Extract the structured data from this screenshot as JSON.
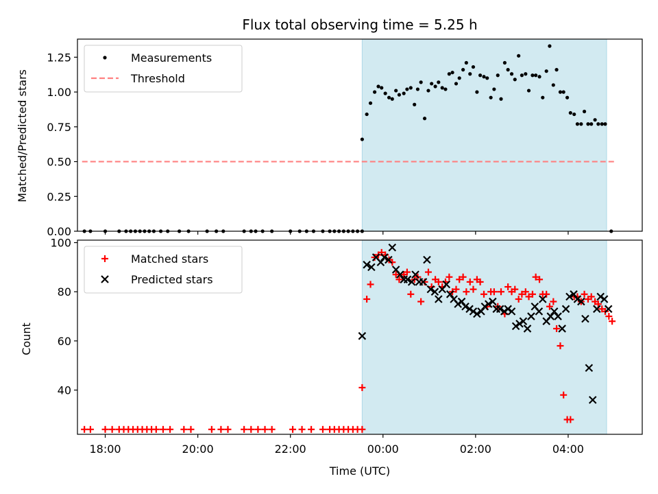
{
  "figure_title": "Flux total observing time = 5.25 h",
  "chart_data": [
    {
      "type": "scatter",
      "title": "Flux total observing time = 5.25 h",
      "xlabel": "",
      "ylabel": "Matched/Predicted stars",
      "xlim": [
        -6.6,
        5.6
      ],
      "ylim": [
        0,
        1.38
      ],
      "yticks": [
        0.0,
        0.25,
        0.5,
        0.75,
        1.0,
        1.25
      ],
      "ytick_labels": [
        "0.00",
        "0.25",
        "0.50",
        "0.75",
        "1.00",
        "1.25"
      ],
      "grid": false,
      "legend_placement": "top-left",
      "observing_window": {
        "start": -0.45,
        "end": 4.83,
        "color": "#add8e6"
      },
      "series": [
        {
          "name": "Measurements",
          "marker": "dot",
          "color": "#000000",
          "x": [
            -6.45,
            -6.32,
            -6.0,
            -5.7,
            -5.55,
            -5.45,
            -5.35,
            -5.25,
            -5.15,
            -5.05,
            -4.95,
            -4.8,
            -4.65,
            -4.4,
            -4.2,
            -3.8,
            -3.6,
            -3.45,
            -3.0,
            -2.85,
            -2.75,
            -2.6,
            -2.4,
            -2.0,
            -1.8,
            -1.65,
            -1.5,
            -1.3,
            -1.15,
            -1.05,
            -0.95,
            -0.85,
            -0.75,
            -0.65,
            -0.55,
            -0.45,
            -0.45,
            -0.35,
            -0.27,
            -0.18,
            -0.1,
            -0.03,
            0.05,
            0.13,
            0.2,
            0.28,
            0.35,
            0.45,
            0.52,
            0.6,
            0.68,
            0.75,
            0.82,
            0.9,
            0.98,
            1.05,
            1.13,
            1.2,
            1.28,
            1.35,
            1.43,
            1.5,
            1.58,
            1.65,
            1.73,
            1.8,
            1.88,
            1.95,
            2.03,
            2.1,
            2.18,
            2.25,
            2.33,
            2.4,
            2.48,
            2.55,
            2.63,
            2.7,
            2.78,
            2.85,
            2.93,
            3.0,
            3.08,
            3.15,
            3.23,
            3.3,
            3.38,
            3.45,
            3.53,
            3.6,
            3.68,
            3.75,
            3.83,
            3.9,
            3.98,
            4.05,
            4.13,
            4.2,
            4.28,
            4.35,
            4.43,
            4.5,
            4.58,
            4.65,
            4.73,
            4.8,
            4.93
          ],
          "y": [
            0,
            0,
            0,
            0,
            0,
            0,
            0,
            0,
            0,
            0,
            0,
            0,
            0,
            0,
            0,
            0,
            0,
            0,
            0,
            0,
            0,
            0,
            0,
            0,
            0,
            0,
            0,
            0,
            0,
            0,
            0,
            0,
            0,
            0,
            0,
            0,
            0.66,
            0.84,
            0.92,
            1.0,
            1.04,
            1.03,
            0.99,
            0.96,
            0.95,
            1.01,
            0.98,
            0.99,
            1.02,
            1.03,
            0.91,
            1.02,
            1.07,
            0.81,
            1.01,
            1.06,
            1.04,
            1.07,
            1.03,
            1.02,
            1.13,
            1.14,
            1.06,
            1.1,
            1.16,
            1.21,
            1.13,
            1.18,
            1.0,
            1.12,
            1.11,
            1.1,
            0.96,
            1.02,
            1.12,
            0.95,
            1.21,
            1.16,
            1.13,
            1.09,
            1.26,
            1.12,
            1.13,
            1.01,
            1.12,
            1.12,
            1.11,
            0.96,
            1.15,
            1.33,
            1.05,
            1.16,
            1.0,
            1.0,
            0.96,
            0.85,
            0.84,
            0.77,
            0.77,
            0.86,
            0.77,
            0.77,
            0.8,
            0.77,
            0.77,
            0.77,
            0.0
          ]
        },
        {
          "name": "Threshold",
          "type": "line",
          "style": "dashed",
          "color": "#ff8080",
          "x": [
            -6.5,
            5.0
          ],
          "y": [
            0.5,
            0.5
          ]
        }
      ]
    },
    {
      "type": "scatter",
      "title": "",
      "xlabel": "Time (UTC)",
      "ylabel": "Count",
      "xlim": [
        -6.6,
        5.6
      ],
      "ylim": [
        22,
        101
      ],
      "yticks": [
        40,
        60,
        80,
        100
      ],
      "ytick_labels": [
        "40",
        "60",
        "80",
        "100"
      ],
      "xticks": [
        -6,
        -4,
        -2,
        0,
        2,
        4
      ],
      "xtick_labels": [
        "18:00",
        "20:00",
        "22:00",
        "00:00",
        "02:00",
        "04:00"
      ],
      "grid": false,
      "legend_placement": "top-left",
      "observing_window": {
        "start": -0.45,
        "end": 4.83,
        "color": "#add8e6"
      },
      "series": [
        {
          "name": "Matched stars",
          "marker": "plus",
          "color": "#ff0000",
          "x": [
            -6.45,
            -6.32,
            -6.0,
            -5.85,
            -5.7,
            -5.6,
            -5.5,
            -5.4,
            -5.3,
            -5.2,
            -5.1,
            -5.0,
            -4.9,
            -4.75,
            -4.6,
            -4.3,
            -4.15,
            -3.7,
            -3.5,
            -3.35,
            -3.0,
            -2.85,
            -2.7,
            -2.55,
            -2.4,
            -1.95,
            -1.75,
            -1.55,
            -1.3,
            -1.15,
            -1.05,
            -0.95,
            -0.85,
            -0.75,
            -0.65,
            -0.55,
            -0.45,
            -0.45,
            -0.35,
            -0.27,
            -0.18,
            -0.1,
            -0.03,
            0.05,
            0.13,
            0.2,
            0.28,
            0.35,
            0.45,
            0.52,
            0.6,
            0.68,
            0.75,
            0.82,
            0.9,
            0.98,
            1.05,
            1.13,
            1.2,
            1.28,
            1.35,
            1.43,
            1.5,
            1.58,
            1.65,
            1.73,
            1.8,
            1.88,
            1.95,
            2.03,
            2.1,
            2.18,
            2.25,
            2.33,
            2.4,
            2.48,
            2.55,
            2.63,
            2.7,
            2.78,
            2.85,
            2.93,
            3.0,
            3.08,
            3.15,
            3.23,
            3.3,
            3.38,
            3.45,
            3.53,
            3.6,
            3.68,
            3.75,
            3.83,
            3.9,
            3.98,
            4.05,
            4.13,
            4.2,
            4.28,
            4.35,
            4.43,
            4.5,
            4.58,
            4.65,
            4.73,
            4.8,
            4.88,
            4.95
          ],
          "y": [
            24,
            24,
            24,
            24,
            24,
            24,
            24,
            24,
            24,
            24,
            24,
            24,
            24,
            24,
            24,
            24,
            24,
            24,
            24,
            24,
            24,
            24,
            24,
            24,
            24,
            24,
            24,
            24,
            24,
            24,
            24,
            24,
            24,
            24,
            24,
            24,
            24,
            41,
            77,
            83,
            94,
            95,
            96,
            95,
            93,
            92,
            87,
            85,
            87,
            88,
            79,
            85,
            86,
            76,
            84,
            88,
            82,
            85,
            84,
            82,
            84,
            86,
            80,
            81,
            85,
            86,
            80,
            84,
            81,
            85,
            84,
            79,
            74,
            80,
            80,
            74,
            80,
            71,
            82,
            80,
            81,
            77,
            79,
            80,
            78,
            79,
            86,
            85,
            79,
            79,
            74,
            76,
            65,
            58,
            38,
            28,
            28,
            78,
            78,
            76,
            79,
            77,
            78,
            76,
            75,
            73,
            72,
            70,
            68
          ]
        },
        {
          "name": "Predicted stars",
          "marker": "x",
          "color": "#000000",
          "x": [
            -0.45,
            -0.35,
            -0.25,
            -0.15,
            -0.05,
            0.03,
            0.12,
            0.2,
            0.28,
            0.37,
            0.45,
            0.53,
            0.62,
            0.7,
            0.78,
            0.87,
            0.95,
            1.03,
            1.12,
            1.2,
            1.28,
            1.37,
            1.45,
            1.53,
            1.62,
            1.7,
            1.78,
            1.87,
            1.95,
            2.03,
            2.12,
            2.2,
            2.28,
            2.37,
            2.45,
            2.53,
            2.62,
            2.7,
            2.78,
            2.87,
            2.95,
            3.03,
            3.12,
            3.2,
            3.28,
            3.37,
            3.45,
            3.53,
            3.62,
            3.7,
            3.78,
            3.87,
            3.95,
            4.03,
            4.12,
            4.2,
            4.28,
            4.37,
            4.45,
            4.53,
            4.62,
            4.7,
            4.78,
            4.87
          ],
          "y": [
            62,
            91,
            90,
            94,
            92,
            94,
            93,
            98,
            89,
            87,
            85,
            85,
            84,
            87,
            84,
            84,
            93,
            81,
            80,
            77,
            81,
            83,
            79,
            77,
            75,
            76,
            74,
            73,
            72,
            71,
            72,
            74,
            75,
            76,
            73,
            73,
            72,
            73,
            72,
            66,
            67,
            68,
            65,
            70,
            74,
            72,
            77,
            68,
            70,
            72,
            70,
            65,
            73,
            78,
            79,
            77,
            76,
            69,
            49,
            36,
            73,
            78,
            77,
            73
          ]
        }
      ]
    }
  ]
}
